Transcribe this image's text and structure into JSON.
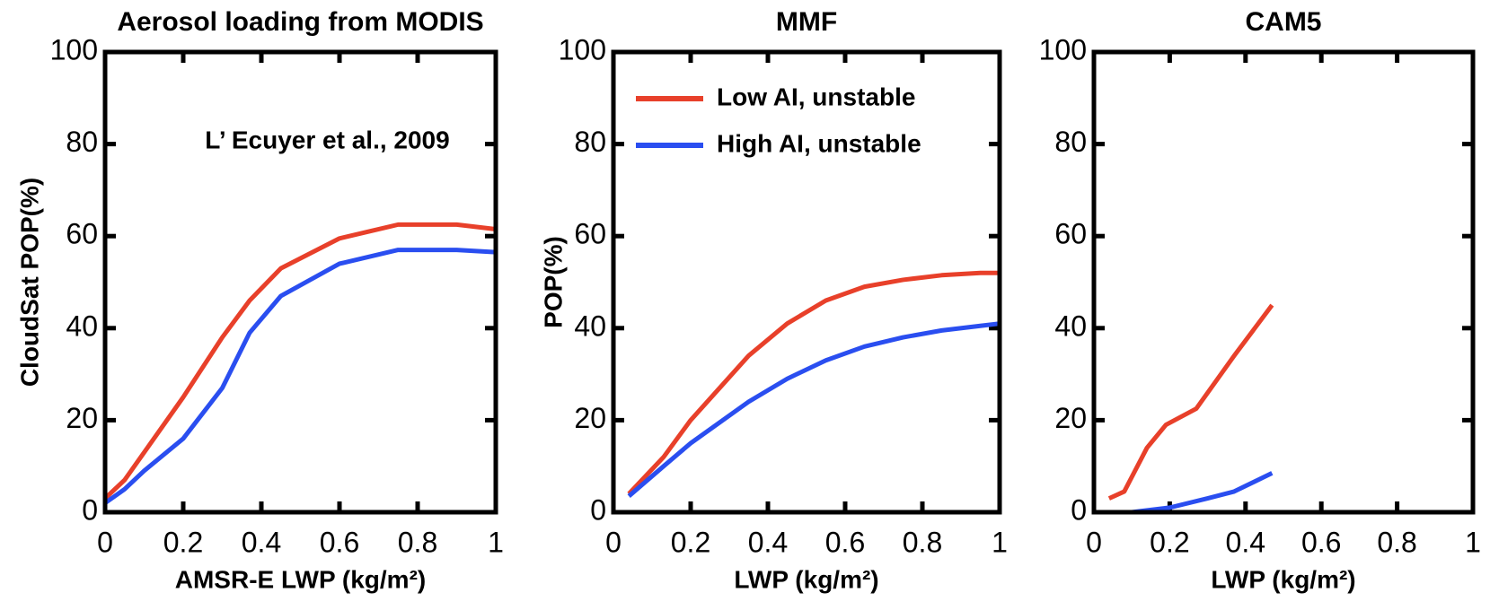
{
  "chart_data": [
    {
      "type": "line",
      "title": "Aerosol loading from MODIS",
      "xlabel": "AMSR-E LWP (kg/m²)",
      "ylabel": "CloudSat POP(%)",
      "annotation": "L’ Ecuyer et al., 2009",
      "xlim": [
        0,
        1
      ],
      "xticks": [
        0,
        0.2,
        0.4,
        0.6,
        0.8,
        1
      ],
      "ylim": [
        0,
        100
      ],
      "yticks": [
        0,
        20,
        40,
        60,
        80,
        100
      ],
      "series": [
        {
          "color": "#e8402a",
          "x": [
            0,
            0.05,
            0.1,
            0.2,
            0.3,
            0.37,
            0.45,
            0.6,
            0.75,
            0.9,
            1.0
          ],
          "values": [
            3,
            7,
            13,
            25,
            38,
            46,
            53,
            59.5,
            62.5,
            62.5,
            61.5
          ]
        },
        {
          "color": "#2a4ef0",
          "x": [
            0,
            0.05,
            0.1,
            0.2,
            0.3,
            0.37,
            0.45,
            0.6,
            0.75,
            0.9,
            1.0
          ],
          "values": [
            2,
            5,
            9,
            16,
            27,
            39,
            47,
            54,
            57,
            57,
            56.5
          ]
        }
      ]
    },
    {
      "type": "line",
      "title": "MMF",
      "xlabel": "LWP (kg/m²)",
      "ylabel": "POP(%)",
      "legend": "upper left",
      "xlim": [
        0,
        1
      ],
      "xticks": [
        0,
        0.2,
        0.4,
        0.6,
        0.8,
        1
      ],
      "ylim": [
        0,
        100
      ],
      "yticks": [
        0,
        20,
        40,
        60,
        80,
        100
      ],
      "series": [
        {
          "name": "Low AI, unstable",
          "color": "#e8402a",
          "x": [
            0.04,
            0.13,
            0.2,
            0.35,
            0.45,
            0.55,
            0.65,
            0.75,
            0.85,
            0.95,
            1.0
          ],
          "values": [
            4,
            12,
            20,
            34,
            41,
            46,
            49,
            50.5,
            51.5,
            52,
            52
          ]
        },
        {
          "name": "High AI, unstable",
          "color": "#2a4ef0",
          "x": [
            0.04,
            0.13,
            0.2,
            0.35,
            0.45,
            0.55,
            0.65,
            0.75,
            0.85,
            0.95,
            1.0
          ],
          "values": [
            3.5,
            10,
            15,
            24,
            29,
            33,
            36,
            38,
            39.5,
            40.5,
            41
          ]
        }
      ]
    },
    {
      "type": "line",
      "title": "CAM5",
      "xlabel": "LWP (kg/m²)",
      "xlim": [
        0,
        1
      ],
      "xticks": [
        0,
        0.2,
        0.4,
        0.6,
        0.8,
        1
      ],
      "ylim": [
        0,
        100
      ],
      "yticks": [
        0,
        20,
        40,
        60,
        80,
        100
      ],
      "series": [
        {
          "color": "#e8402a",
          "x": [
            0.04,
            0.08,
            0.14,
            0.19,
            0.27,
            0.37,
            0.47
          ],
          "values": [
            3,
            4.5,
            14,
            19,
            22.5,
            34,
            45
          ]
        },
        {
          "color": "#2a4ef0",
          "x": [
            0.04,
            0.1,
            0.2,
            0.3,
            0.37,
            0.47
          ],
          "values": [
            0,
            0,
            1,
            3,
            4.5,
            8.5
          ]
        }
      ]
    }
  ]
}
